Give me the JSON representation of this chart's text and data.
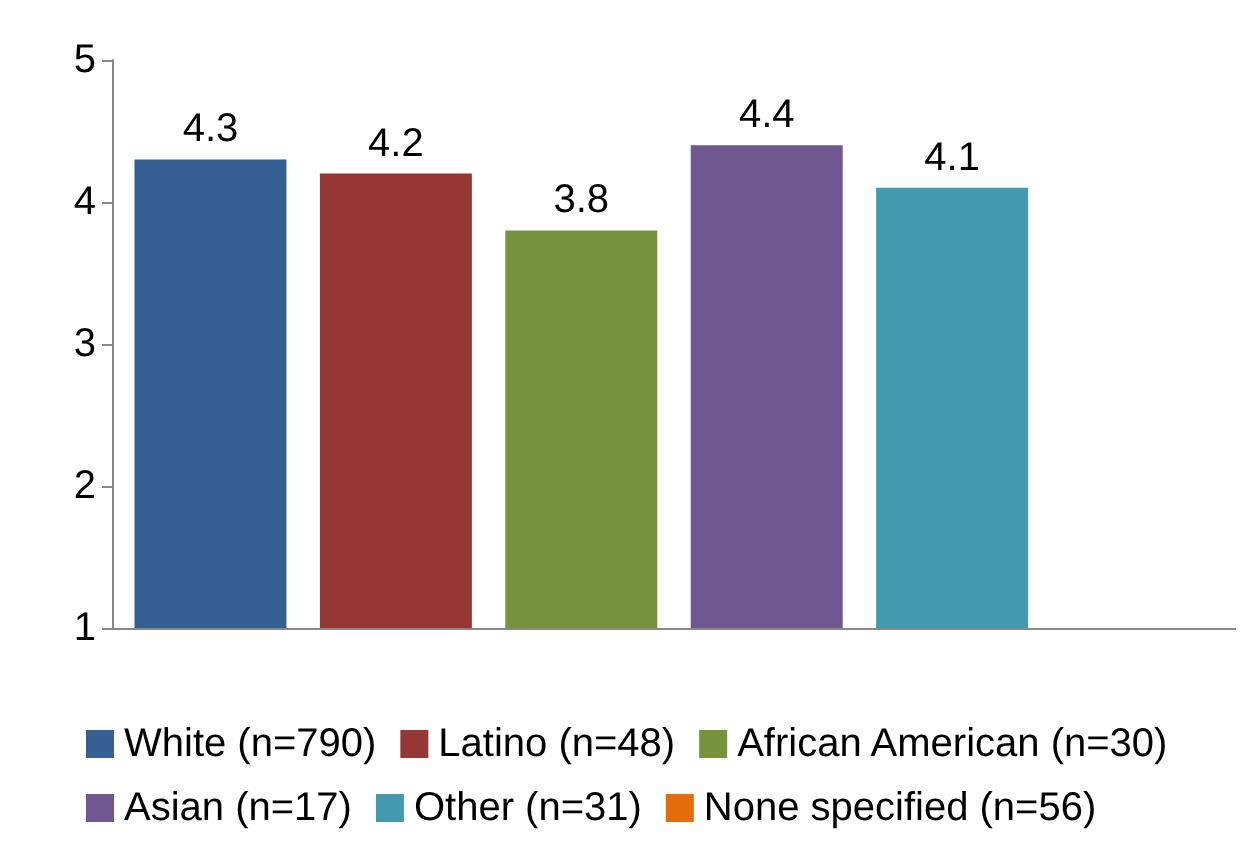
{
  "chart_data": {
    "type": "bar",
    "categories": [
      null
    ],
    "series": [
      {
        "name": "White (n=790)",
        "color": "#365f91",
        "values": [
          4.3
        ]
      },
      {
        "name": "Latino (n=48)",
        "color": "#953735",
        "values": [
          4.2
        ]
      },
      {
        "name": "African American (n=30)",
        "color": "#76923c",
        "values": [
          3.8
        ]
      },
      {
        "name": "Asian (n=17)",
        "color": "#70578f",
        "values": [
          4.4
        ]
      },
      {
        "name": "Other (n=31)",
        "color": "#4299b0",
        "values": [
          4.1
        ]
      },
      {
        "name": "None specified (n=56)",
        "color": "#e46c0a",
        "values": [
          null
        ]
      }
    ],
    "ylim": [
      1,
      5
    ],
    "yticks": [
      1,
      2,
      3,
      4,
      5
    ],
    "grid": false,
    "legend": "bottom",
    "data_labels": true
  }
}
